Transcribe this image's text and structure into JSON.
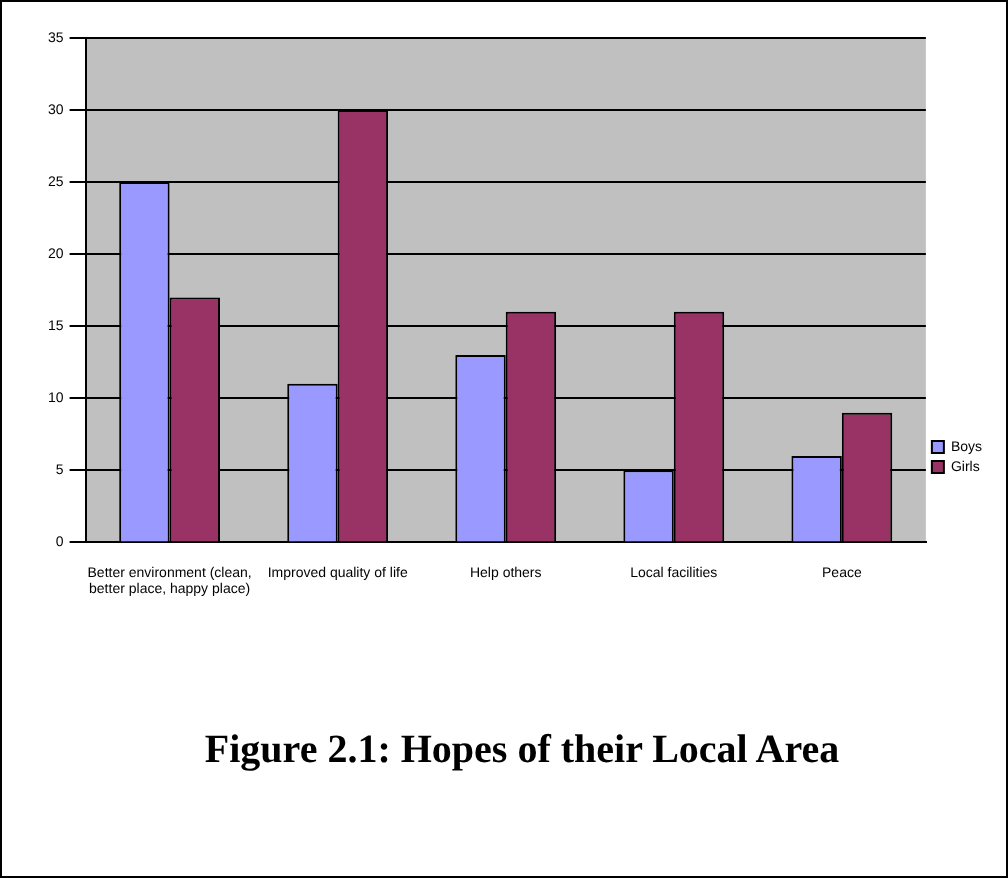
{
  "chart_data": {
    "type": "bar",
    "title": "Figure 2.1: Hopes of their Local Area",
    "categories": [
      "Better environment (clean, better place, happy place)",
      "Improved quality of life",
      "Help others",
      "Local facilities",
      "Peace"
    ],
    "series": [
      {
        "name": "Boys",
        "color": "#9999ff",
        "values": [
          25,
          11,
          13,
          5,
          6
        ]
      },
      {
        "name": "Girls",
        "color": "#993366",
        "values": [
          17,
          30,
          16,
          16,
          9
        ]
      }
    ],
    "ylim": [
      0,
      35
    ],
    "yticks": [
      0,
      5,
      10,
      15,
      20,
      25,
      30,
      35
    ],
    "grid": "y",
    "legend": "right"
  }
}
